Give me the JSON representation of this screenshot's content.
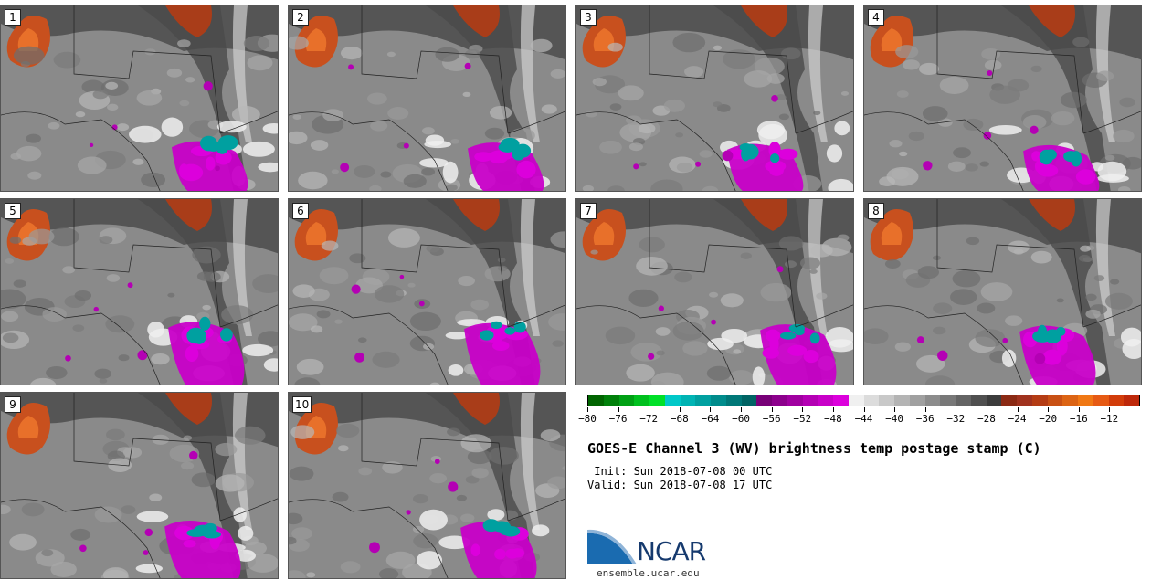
{
  "panels": [
    {
      "label": "1"
    },
    {
      "label": "2"
    },
    {
      "label": "3"
    },
    {
      "label": "4"
    },
    {
      "label": "5"
    },
    {
      "label": "6"
    },
    {
      "label": "7"
    },
    {
      "label": "8"
    },
    {
      "label": "9"
    },
    {
      "label": "10"
    }
  ],
  "colorbar": {
    "colors": [
      "#006400",
      "#00800a",
      "#00a014",
      "#00c01e",
      "#00e028",
      "#00c8c8",
      "#00b4b4",
      "#00a0a0",
      "#008c8c",
      "#007878",
      "#006464",
      "#780078",
      "#8c008c",
      "#a000a0",
      "#b400b4",
      "#c800c8",
      "#dc00dc",
      "#f0f0f0",
      "#dcdcdc",
      "#c8c8c8",
      "#b4b4b4",
      "#a0a0a0",
      "#8c8c8c",
      "#787878",
      "#646464",
      "#505050",
      "#3c3c3c",
      "#8b2a14",
      "#a0321e",
      "#b43c14",
      "#c85014",
      "#dc6414",
      "#f07814",
      "#e65a14",
      "#d23c0a",
      "#be280a"
    ],
    "ticks": [
      "−80",
      "−76",
      "−72",
      "−68",
      "−64",
      "−60",
      "−56",
      "−52",
      "−48",
      "−44",
      "−40",
      "−36",
      "−32",
      "−28",
      "−24",
      "−20",
      "−16",
      "−12"
    ],
    "min": -80,
    "max": -8
  },
  "title": "GOES-E Channel 3 (WV) brightness temp postage stamp (C)",
  "init": " Init: Sun 2018-07-08 00 UTC",
  "valid": "Valid: Sun 2018-07-08 17 UTC",
  "logo": {
    "text": "NCAR",
    "site": "ensemble.ucar.edu"
  }
}
